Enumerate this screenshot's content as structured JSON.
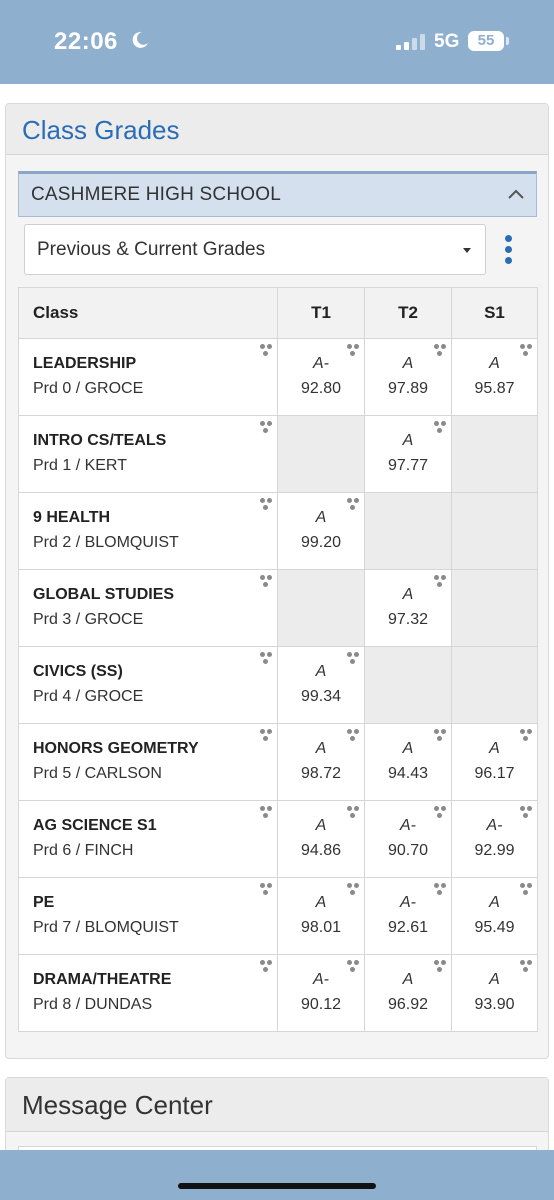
{
  "status_bar": {
    "time": "22:06",
    "network": "5G",
    "battery": "55"
  },
  "panel": {
    "title": "Class Grades",
    "school": "CASHMERE HIGH SCHOOL",
    "term_select": "Previous & Current Grades"
  },
  "table": {
    "headers": [
      "Class",
      "T1",
      "T2",
      "S1"
    ],
    "rows": [
      {
        "name": "LEADERSHIP",
        "sub": "Prd 0 / GROCE",
        "t1": {
          "letter": "A-",
          "score": "92.80"
        },
        "t2": {
          "letter": "A",
          "score": "97.89"
        },
        "s1": {
          "letter": "A",
          "score": "95.87"
        }
      },
      {
        "name": "INTRO CS/TEALS",
        "sub": "Prd 1 / KERT",
        "t1": null,
        "t2": {
          "letter": "A",
          "score": "97.77"
        },
        "s1": null
      },
      {
        "name": "9 HEALTH",
        "sub": "Prd 2 / BLOMQUIST",
        "t1": {
          "letter": "A",
          "score": "99.20"
        },
        "t2": null,
        "s1": null
      },
      {
        "name": "GLOBAL STUDIES",
        "sub": "Prd 3 / GROCE",
        "t1": null,
        "t2": {
          "letter": "A",
          "score": "97.32"
        },
        "s1": null
      },
      {
        "name": "CIVICS (SS)",
        "sub": "Prd 4 / GROCE",
        "t1": {
          "letter": "A",
          "score": "99.34"
        },
        "t2": null,
        "s1": null
      },
      {
        "name": "HONORS GEOMETRY",
        "sub": "Prd 5 / CARLSON",
        "t1": {
          "letter": "A",
          "score": "98.72"
        },
        "t2": {
          "letter": "A",
          "score": "94.43"
        },
        "s1": {
          "letter": "A",
          "score": "96.17"
        }
      },
      {
        "name": "AG SCIENCE S1",
        "sub": "Prd 6 / FINCH",
        "t1": {
          "letter": "A",
          "score": "94.86"
        },
        "t2": {
          "letter": "A-",
          "score": "90.70"
        },
        "s1": {
          "letter": "A-",
          "score": "92.99"
        }
      },
      {
        "name": "PE",
        "sub": "Prd 7 / BLOMQUIST",
        "t1": {
          "letter": "A",
          "score": "98.01"
        },
        "t2": {
          "letter": "A-",
          "score": "92.61"
        },
        "s1": {
          "letter": "A",
          "score": "95.49"
        }
      },
      {
        "name": "DRAMA/THEATRE",
        "sub": "Prd 8 / DUNDAS",
        "t1": {
          "letter": "A-",
          "score": "90.12"
        },
        "t2": {
          "letter": "A",
          "score": "96.92"
        },
        "s1": {
          "letter": "A",
          "score": "93.90"
        }
      }
    ]
  },
  "message_center": {
    "title": "Message Center"
  },
  "colors": {
    "status_bar": "#8fafcf",
    "accent_blue": "#2a6db5",
    "school_bar": "#d4e0ee",
    "empty_cell": "#ececec"
  }
}
